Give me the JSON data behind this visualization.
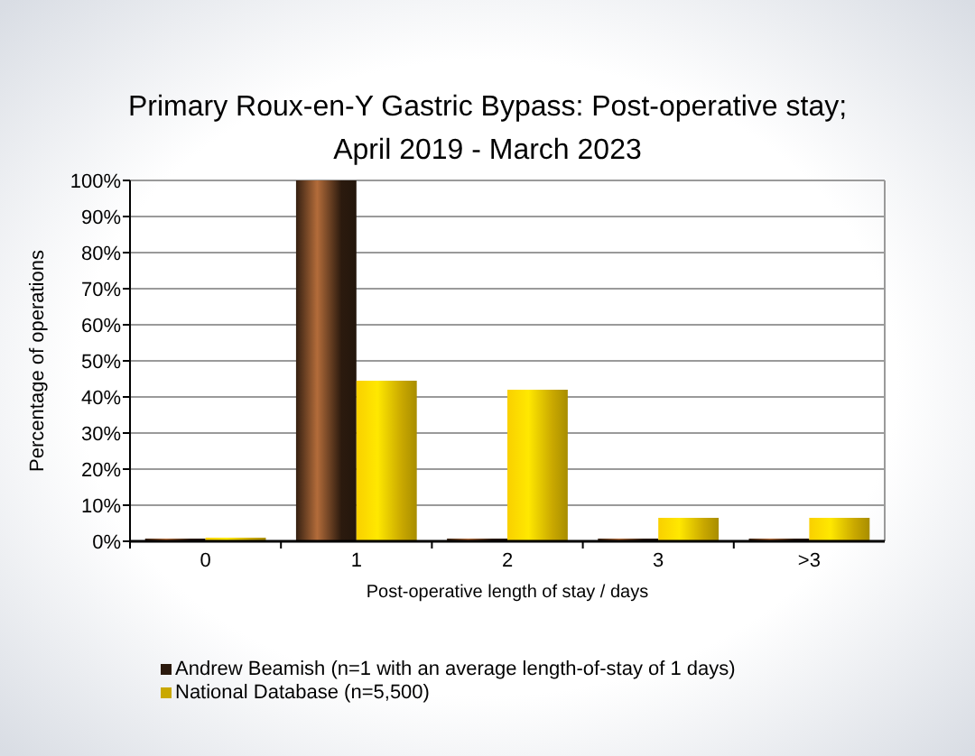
{
  "chart_data": {
    "type": "bar",
    "title": "Primary Roux-en-Y Gastric Bypass: Post-operative stay;\nApril 2019 - March 2023",
    "xlabel": "Post-operative length of stay / days",
    "ylabel": "Percentage of operations",
    "categories": [
      "0",
      "1",
      "2",
      "3",
      ">3"
    ],
    "series": [
      {
        "name": "Andrew Beamish (n=1 with an average length-of-stay of 1 days)",
        "color": "#2b1a0e",
        "values": [
          0,
          100,
          0,
          0,
          0
        ]
      },
      {
        "name": "National Database (n=5,500)",
        "color": "#c9a800",
        "values": [
          1,
          44.5,
          42,
          6.5,
          6.5
        ]
      }
    ],
    "ylim": [
      0,
      100
    ],
    "yticks": [
      {
        "value": 0,
        "label": "0%"
      },
      {
        "value": 10,
        "label": "10%"
      },
      {
        "value": 20,
        "label": "20%"
      },
      {
        "value": 30,
        "label": "30%"
      },
      {
        "value": 40,
        "label": "40%"
      },
      {
        "value": 50,
        "label": "50%"
      },
      {
        "value": 60,
        "label": "60%"
      },
      {
        "value": 70,
        "label": "70%"
      },
      {
        "value": 80,
        "label": "80%"
      },
      {
        "value": 90,
        "label": "90%"
      },
      {
        "value": 100,
        "label": "100%"
      }
    ],
    "grid": "y",
    "legend": "bottom"
  }
}
